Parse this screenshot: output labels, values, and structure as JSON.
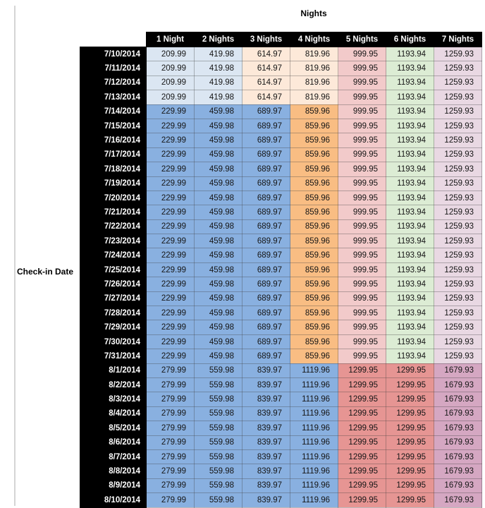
{
  "chart_data": {
    "type": "table",
    "title": "Nights",
    "row_axis_label": "Check-in Date",
    "columns": [
      "1 Night",
      "2 Nights",
      "3 Nights",
      "4 Nights",
      "5 Nights",
      "6 Nights",
      "7 Nights"
    ],
    "palette": {
      "light_blue": "#dbe6f2",
      "med_blue": "#89b0e0",
      "light_orange": "#fde9d9",
      "med_orange": "#f9bd83",
      "light_red": "#f2caca",
      "med_red": "#e69593",
      "light_green": "#dcecd4",
      "light_purple": "#e9d8e3",
      "med_purple": "#d5a7c2",
      "header_bg": "#000000",
      "header_text": "#ffffff",
      "grid_line": "rgba(64,64,64,0.35)",
      "window_edge": "#d5d5d5"
    },
    "row_groups": [
      {
        "dates": [
          "7/10/2014",
          "7/11/2014",
          "7/12/2014",
          "7/13/2014"
        ],
        "values": [
          "209.99",
          "419.98",
          "614.97",
          "819.96",
          "999.95",
          "1193.94",
          "1259.93"
        ],
        "colors": [
          "light_blue",
          "light_blue",
          "light_orange",
          "light_orange",
          "light_red",
          "light_green",
          "light_purple"
        ]
      },
      {
        "dates": [
          "7/14/2014",
          "7/15/2014",
          "7/16/2014",
          "7/17/2014",
          "7/18/2014",
          "7/19/2014",
          "7/20/2014",
          "7/21/2014",
          "7/22/2014",
          "7/23/2014",
          "7/24/2014",
          "7/25/2014",
          "7/26/2014",
          "7/27/2014",
          "7/28/2014",
          "7/29/2014",
          "7/30/2014",
          "7/31/2014"
        ],
        "values": [
          "229.99",
          "459.98",
          "689.97",
          "859.96",
          "999.95",
          "1193.94",
          "1259.93"
        ],
        "colors": [
          "med_blue",
          "med_blue",
          "med_blue",
          "med_orange",
          "light_red",
          "light_green",
          "light_purple"
        ]
      },
      {
        "dates": [
          "8/1/2014",
          "8/2/2014",
          "8/3/2014",
          "8/4/2014",
          "8/5/2014",
          "8/6/2014",
          "8/7/2014",
          "8/8/2014",
          "8/9/2014",
          "8/10/2014"
        ],
        "values": [
          "279.99",
          "559.98",
          "839.97",
          "1119.96",
          "1299.95",
          "1299.95",
          "1679.93"
        ],
        "colors": [
          "med_blue",
          "med_blue",
          "med_blue",
          "med_blue",
          "med_red",
          "med_red",
          "med_purple"
        ]
      }
    ]
  }
}
